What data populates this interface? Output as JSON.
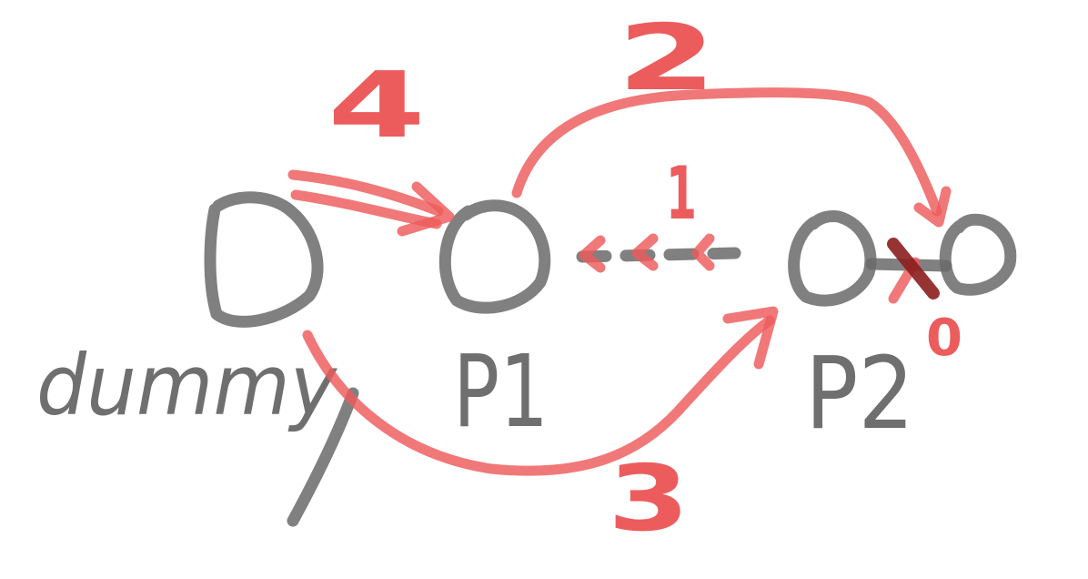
{
  "diagram": {
    "nodes": [
      {
        "id": "dummy",
        "label": "dummy"
      },
      {
        "id": "p1",
        "label": "P1"
      },
      {
        "id": "p2",
        "label": "P2"
      },
      {
        "id": "next",
        "label": ""
      }
    ],
    "step_labels": {
      "step1": "1",
      "step2": "2",
      "step3": "3",
      "step4": "4",
      "step0": "0"
    },
    "colors": {
      "node_ink": "#6a6a6a",
      "step_ink": "#ee5a5a",
      "strike_ink": "#8b1e1e"
    }
  }
}
